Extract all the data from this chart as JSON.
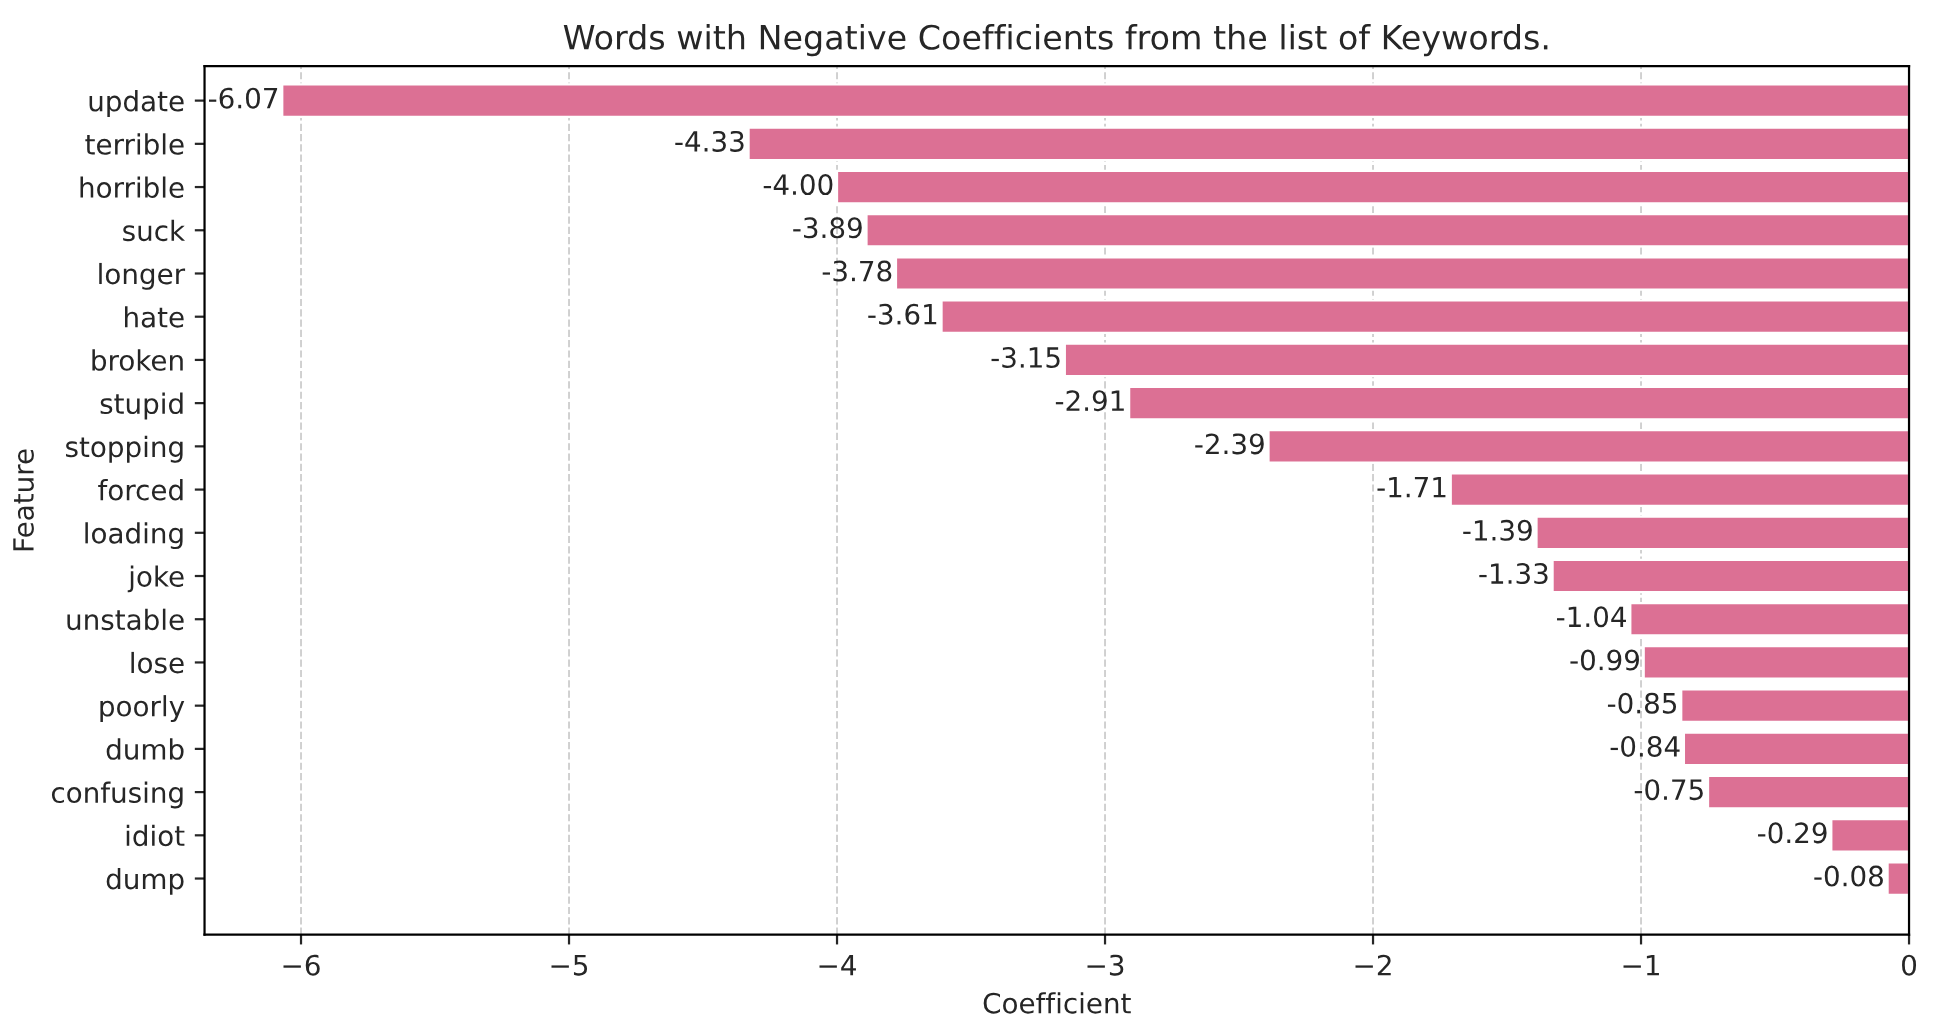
{
  "chart_data": {
    "type": "bar",
    "orientation": "horizontal",
    "title": "Words with Negative Coefficients from the list of Keywords.",
    "xlabel": "Coefficient",
    "ylabel": "Feature",
    "categories": [
      "update",
      "terrible",
      "horrible",
      "suck",
      "longer",
      "hate",
      "broken",
      "stupid",
      "stopping",
      "forced",
      "loading",
      "joke",
      "unstable",
      "lose",
      "poorly",
      "dumb",
      "confusing",
      "idiot",
      "dump"
    ],
    "values": [
      -6.07,
      -4.33,
      -4.0,
      -3.89,
      -3.78,
      -3.61,
      -3.15,
      -2.91,
      -2.39,
      -1.71,
      -1.39,
      -1.33,
      -1.04,
      -0.99,
      -0.85,
      -0.84,
      -0.75,
      -0.29,
      -0.08
    ],
    "value_labels": [
      "-6.07",
      "-4.33",
      "-4.00",
      "-3.89",
      "-3.78",
      "-3.61",
      "-3.15",
      "-2.91",
      "-2.39",
      "-1.71",
      "-1.39",
      "-1.33",
      "-1.04",
      "-0.99",
      "-0.85",
      "-0.84",
      "-0.75",
      "-0.29",
      "-0.08"
    ],
    "color": "#dc7094",
    "xlim": [
      -6.36,
      0
    ],
    "xticks": [
      {
        "value": -6,
        "label": "−6"
      },
      {
        "value": -5,
        "label": "−5"
      },
      {
        "value": -4,
        "label": "−4"
      },
      {
        "value": -3,
        "label": "−3"
      },
      {
        "value": -2,
        "label": "−2"
      },
      {
        "value": -1,
        "label": "−1"
      },
      0
    ],
    "grid": "x",
    "legend": false
  }
}
